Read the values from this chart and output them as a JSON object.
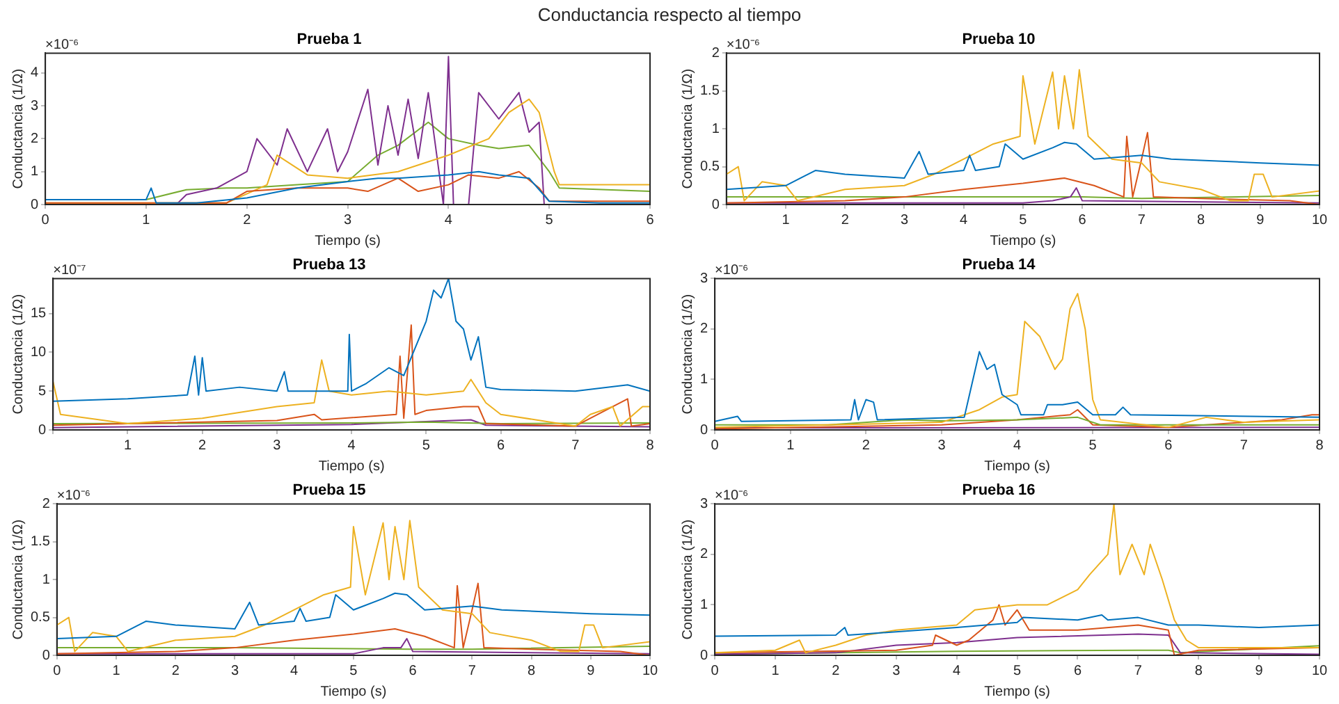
{
  "chart_data": [
    {
      "type": "line",
      "title": "Prueba 1",
      "xlabel": "Tiempo (s)",
      "ylabel": "Conductancia (1/Ω)",
      "annotations": [
        "×10⁻⁶",
        "Conductancia respecto al tiempo"
      ],
      "xlim": [
        0,
        6
      ],
      "xticks": [
        0,
        1,
        2,
        3,
        4,
        5,
        6
      ],
      "ylim": [
        0,
        4.6
      ],
      "yticks": [
        0,
        1,
        2,
        3,
        4
      ],
      "series": [
        {
          "color": "#0072bd",
          "x": [
            0,
            1,
            1.05,
            1.1,
            1.5,
            2,
            2.5,
            3,
            3.3,
            3.5,
            4,
            4.3,
            4.5,
            4.8,
            5,
            5.5,
            6
          ],
          "values": [
            0.15,
            0.15,
            0.5,
            0.05,
            0.05,
            0.2,
            0.5,
            0.7,
            0.8,
            0.8,
            0.9,
            1.0,
            0.9,
            0.8,
            0.1,
            0.05,
            0.05
          ]
        },
        {
          "color": "#d95319",
          "x": [
            0,
            1.8,
            2,
            2.5,
            3,
            3.2,
            3.5,
            3.7,
            4,
            4.2,
            4.5,
            4.7,
            4.9,
            5,
            6
          ],
          "values": [
            0.05,
            0.05,
            0.4,
            0.5,
            0.5,
            0.4,
            0.8,
            0.4,
            0.6,
            0.9,
            0.8,
            1.0,
            0.5,
            0.1,
            0.1
          ]
        },
        {
          "color": "#edb120",
          "x": [
            0,
            1.8,
            2.2,
            2.3,
            2.6,
            3,
            3.5,
            4,
            4.4,
            4.6,
            4.8,
            4.9,
            5.05,
            5.1,
            6
          ],
          "values": [
            0.05,
            0.05,
            0.6,
            1.5,
            0.9,
            0.8,
            1.0,
            1.5,
            2.0,
            2.8,
            3.2,
            2.8,
            1.0,
            0.6,
            0.6
          ]
        },
        {
          "color": "#7e2f8e",
          "x": [
            0,
            1.3,
            1.4,
            1.7,
            2,
            2.1,
            2.3,
            2.4,
            2.6,
            2.8,
            2.9,
            3,
            3.2,
            3.3,
            3.4,
            3.5,
            3.6,
            3.7,
            3.8,
            3.95,
            4,
            4.05,
            4.2,
            4.3,
            4.5,
            4.7,
            4.8,
            4.9,
            4.95,
            5,
            6
          ],
          "values": [
            0,
            0,
            0.3,
            0.5,
            1.0,
            2.0,
            1.2,
            2.3,
            1.0,
            2.3,
            1.0,
            1.6,
            3.5,
            1.2,
            3.0,
            1.5,
            3.2,
            1.4,
            3.4,
            0,
            4.5,
            0,
            0,
            3.4,
            2.6,
            3.4,
            2.2,
            2.5,
            0,
            0,
            0
          ]
        },
        {
          "color": "#77ac30",
          "x": [
            0,
            1,
            1.4,
            1.8,
            2,
            2.5,
            3,
            3.3,
            3.5,
            3.8,
            4,
            4.3,
            4.5,
            4.8,
            5,
            5.1,
            6
          ],
          "values": [
            0.15,
            0.15,
            0.45,
            0.5,
            0.5,
            0.6,
            0.7,
            1.5,
            1.8,
            2.5,
            2.0,
            1.8,
            1.7,
            1.8,
            1.0,
            0.5,
            0.4
          ]
        }
      ]
    },
    {
      "type": "line",
      "title": "Prueba 10",
      "xlabel": "Tiempo (s)",
      "ylabel": "Conductancia (1/Ω)",
      "annotations": [
        "×10⁻⁶"
      ],
      "xlim": [
        0,
        10
      ],
      "xticks": [
        {
          "value": 0,
          "label": null
        },
        1,
        2,
        3,
        4,
        5,
        6,
        7,
        8,
        9,
        10
      ],
      "ylim": [
        0,
        2
      ],
      "yticks": [
        0,
        0.5,
        1,
        1.5,
        2
      ],
      "series": [
        {
          "color": "#0072bd",
          "x": [
            0,
            1,
            1.5,
            2,
            3,
            3.25,
            3.4,
            4,
            4.1,
            4.2,
            4.6,
            4.7,
            5,
            5.5,
            5.7,
            5.9,
            6.2,
            7,
            7.5,
            9,
            10
          ],
          "values": [
            0.2,
            0.25,
            0.45,
            0.4,
            0.35,
            0.7,
            0.4,
            0.45,
            0.65,
            0.45,
            0.5,
            0.8,
            0.6,
            0.75,
            0.82,
            0.8,
            0.6,
            0.65,
            0.6,
            0.55,
            0.52
          ]
        },
        {
          "color": "#edb120",
          "x": [
            0,
            0.2,
            0.3,
            0.6,
            1,
            1.2,
            2,
            3,
            3.5,
            4,
            4.5,
            4.95,
            5,
            5.2,
            5.5,
            5.6,
            5.7,
            5.85,
            5.95,
            6.1,
            6.5,
            7,
            7.3,
            8,
            8.5,
            8.8,
            8.9,
            9.05,
            9.2,
            10
          ],
          "values": [
            0.4,
            0.5,
            0.05,
            0.3,
            0.25,
            0.05,
            0.2,
            0.25,
            0.4,
            0.6,
            0.8,
            0.9,
            1.7,
            0.8,
            1.75,
            1.0,
            1.7,
            1.0,
            1.78,
            0.9,
            0.6,
            0.55,
            0.3,
            0.2,
            0.05,
            0.05,
            0.4,
            0.4,
            0.1,
            0.18
          ]
        },
        {
          "color": "#d95319",
          "x": [
            0,
            2,
            3,
            4,
            5,
            5.7,
            6.2,
            6.7,
            6.75,
            6.85,
            7,
            7.1,
            7.2,
            8,
            9.5,
            10
          ],
          "values": [
            0.02,
            0.05,
            0.1,
            0.2,
            0.28,
            0.35,
            0.25,
            0.1,
            0.9,
            0.1,
            0.6,
            0.95,
            0.1,
            0.08,
            0.05,
            0
          ]
        },
        {
          "color": "#7e2f8e",
          "x": [
            0,
            5,
            5.5,
            5.8,
            5.9,
            6,
            10
          ],
          "values": [
            0.02,
            0.02,
            0.05,
            0.1,
            0.22,
            0.05,
            0.02
          ]
        },
        {
          "color": "#77ac30",
          "x": [
            0,
            3,
            6,
            7,
            10
          ],
          "values": [
            0.1,
            0.1,
            0.1,
            0.08,
            0.12
          ]
        }
      ]
    },
    {
      "type": "line",
      "title": "Prueba 13",
      "xlabel": "Tiempo (s)",
      "ylabel": "Conductancia (1/Ω)",
      "annotations": [
        "×10⁻⁷"
      ],
      "xlim": [
        0,
        8
      ],
      "xticks": [
        {
          "value": 0,
          "label": null
        },
        1,
        2,
        3,
        4,
        5,
        6,
        7,
        8
      ],
      "ylim": [
        0,
        19.5
      ],
      "yticks": [
        0,
        5,
        10,
        15
      ],
      "series": [
        {
          "color": "#0072bd",
          "x": [
            0,
            1,
            1.8,
            1.9,
            1.95,
            2,
            2.05,
            2.5,
            3,
            3.1,
            3.15,
            3.95,
            3.97,
            4,
            4.2,
            4.5,
            4.7,
            5,
            5.1,
            5.2,
            5.3,
            5.4,
            5.5,
            5.6,
            5.7,
            5.8,
            6,
            7,
            7.7,
            8
          ],
          "values": [
            3.7,
            4.0,
            4.5,
            9.5,
            4.5,
            9.3,
            5,
            5.5,
            5,
            7.5,
            5,
            5,
            12.3,
            5,
            6,
            8,
            7,
            14,
            18,
            17,
            19.5,
            14,
            13,
            9,
            12,
            5.5,
            5.2,
            5,
            5.8,
            5.0
          ]
        },
        {
          "color": "#edb120",
          "x": [
            0,
            0.1,
            1,
            2,
            3,
            3.5,
            3.6,
            3.7,
            4,
            4.5,
            5,
            5.5,
            5.6,
            5.7,
            5.8,
            6,
            7,
            7.2,
            7.5,
            7.6,
            7.9,
            8
          ],
          "values": [
            6.2,
            2,
            0.8,
            1.5,
            3,
            3.5,
            9,
            5,
            4.5,
            5,
            4.5,
            5,
            6.5,
            5,
            3.5,
            2,
            0.5,
            2,
            3,
            0.5,
            3,
            3
          ]
        },
        {
          "color": "#d95319",
          "x": [
            0,
            3,
            3.5,
            3.6,
            4.6,
            4.65,
            4.7,
            4.8,
            4.85,
            5,
            5.5,
            5.7,
            5.8,
            7,
            7.7,
            7.75,
            8
          ],
          "values": [
            0.6,
            1.2,
            2,
            1.3,
            2,
            9.5,
            1.5,
            13.5,
            2,
            2.5,
            3,
            3,
            0.8,
            0.5,
            4,
            0.5,
            0.8
          ]
        },
        {
          "color": "#77ac30",
          "x": [
            0,
            4,
            5,
            6,
            8
          ],
          "values": [
            0.8,
            0.9,
            1.0,
            0.8,
            0.9
          ]
        },
        {
          "color": "#7e2f8e",
          "x": [
            0,
            4,
            5.6,
            5.8,
            8
          ],
          "values": [
            0.3,
            0.7,
            1.3,
            0.6,
            0.4
          ]
        }
      ]
    },
    {
      "type": "line",
      "title": "Prueba 14",
      "xlabel": "Tiempo (s)",
      "ylabel": "Conductancia (1/Ω)",
      "annotations": [
        "×10⁻⁶"
      ],
      "xlim": [
        0,
        8
      ],
      "xticks": [
        0,
        1,
        2,
        3,
        4,
        5,
        6,
        7,
        8
      ],
      "ylim": [
        0,
        3
      ],
      "yticks": [
        0,
        1,
        2,
        3
      ],
      "series": [
        {
          "color": "#0072bd",
          "x": [
            0,
            0.3,
            0.35,
            1.8,
            1.85,
            1.9,
            2,
            2.1,
            2.15,
            3.3,
            3.4,
            3.5,
            3.6,
            3.7,
            3.8,
            4,
            4.05,
            4.35,
            4.4,
            4.6,
            4.8,
            5,
            5.3,
            5.4,
            5.5,
            8
          ],
          "values": [
            0.17,
            0.27,
            0.17,
            0.2,
            0.6,
            0.2,
            0.6,
            0.55,
            0.2,
            0.25,
            0.9,
            1.55,
            1.2,
            1.3,
            0.7,
            0.5,
            0.3,
            0.3,
            0.5,
            0.5,
            0.55,
            0.3,
            0.3,
            0.45,
            0.3,
            0.25
          ]
        },
        {
          "color": "#edb120",
          "x": [
            0,
            3,
            3.5,
            3.8,
            4,
            4.1,
            4.3,
            4.5,
            4.6,
            4.7,
            4.8,
            4.9,
            5,
            5.1,
            6,
            6.5,
            7,
            8
          ],
          "values": [
            0.05,
            0.15,
            0.4,
            0.65,
            0.7,
            2.15,
            1.85,
            1.2,
            1.4,
            2.4,
            2.7,
            2.0,
            0.6,
            0.2,
            0.05,
            0.25,
            0.15,
            0.2
          ]
        },
        {
          "color": "#77ac30",
          "x": [
            0,
            1.5,
            2.5,
            3,
            4,
            4.8,
            5.1,
            8
          ],
          "values": [
            0.1,
            0.1,
            0.2,
            0.18,
            0.2,
            0.25,
            0.1,
            0.1
          ]
        },
        {
          "color": "#d95319",
          "x": [
            0,
            3,
            4,
            4.7,
            4.8,
            5,
            6,
            7.5,
            7.9,
            8
          ],
          "values": [
            0.02,
            0.1,
            0.2,
            0.3,
            0.4,
            0.1,
            0.05,
            0.2,
            0.3,
            0.3
          ]
        },
        {
          "color": "#7e2f8e",
          "x": [
            0,
            8
          ],
          "values": [
            0.04,
            0.05
          ]
        }
      ]
    },
    {
      "type": "line",
      "title": "Prueba 15",
      "xlabel": "Tiempo (s)",
      "ylabel": "Conductancia (1/Ω)",
      "annotations": [
        "×10⁻⁶"
      ],
      "xlim": [
        0,
        10
      ],
      "xticks": [
        0,
        1,
        2,
        3,
        4,
        5,
        6,
        7,
        8,
        9,
        10
      ],
      "ylim": [
        0,
        2
      ],
      "yticks": [
        0,
        0.5,
        1,
        1.5,
        2
      ],
      "series": [
        {
          "color": "#0072bd",
          "x": [
            0,
            1,
            1.5,
            2,
            3,
            3.25,
            3.4,
            4,
            4.1,
            4.2,
            4.6,
            4.7,
            5,
            5.5,
            5.7,
            5.9,
            6.2,
            7,
            7.5,
            9,
            10
          ],
          "values": [
            0.22,
            0.25,
            0.45,
            0.4,
            0.35,
            0.7,
            0.4,
            0.45,
            0.62,
            0.45,
            0.5,
            0.8,
            0.6,
            0.75,
            0.82,
            0.8,
            0.6,
            0.65,
            0.6,
            0.55,
            0.53
          ]
        },
        {
          "color": "#edb120",
          "x": [
            0,
            0.2,
            0.3,
            0.6,
            1,
            1.2,
            2,
            3,
            3.5,
            4,
            4.5,
            4.95,
            5,
            5.2,
            5.5,
            5.6,
            5.7,
            5.85,
            5.95,
            6.1,
            6.5,
            7,
            7.3,
            8,
            8.5,
            8.8,
            8.9,
            9.05,
            9.2,
            10
          ],
          "values": [
            0.4,
            0.5,
            0.05,
            0.3,
            0.25,
            0.05,
            0.2,
            0.25,
            0.4,
            0.6,
            0.8,
            0.9,
            1.7,
            0.8,
            1.75,
            1.0,
            1.7,
            1.0,
            1.78,
            0.9,
            0.6,
            0.55,
            0.3,
            0.2,
            0.05,
            0.05,
            0.4,
            0.4,
            0.1,
            0.18
          ]
        },
        {
          "color": "#d95319",
          "x": [
            0,
            2,
            3,
            4,
            5,
            5.7,
            6.2,
            6.7,
            6.75,
            6.85,
            7,
            7.1,
            7.2,
            8,
            9.5,
            10
          ],
          "values": [
            0.02,
            0.05,
            0.1,
            0.2,
            0.28,
            0.35,
            0.25,
            0.1,
            0.92,
            0.1,
            0.6,
            0.95,
            0.1,
            0.08,
            0.05,
            0
          ]
        },
        {
          "color": "#7e2f8e",
          "x": [
            0,
            5,
            5.5,
            5.8,
            5.9,
            6,
            10
          ],
          "values": [
            0.02,
            0.02,
            0.1,
            0.1,
            0.22,
            0.05,
            0.02
          ]
        },
        {
          "color": "#77ac30",
          "x": [
            0,
            3,
            6,
            7,
            10
          ],
          "values": [
            0.1,
            0.1,
            0.08,
            0.08,
            0.12
          ]
        }
      ]
    },
    {
      "type": "line",
      "title": "Prueba 16",
      "xlabel": "Tiempo (s)",
      "ylabel": "Conductancia (1/Ω)",
      "annotations": [
        "×10⁻⁶"
      ],
      "xlim": [
        0,
        10
      ],
      "xticks": [
        0,
        1,
        2,
        3,
        4,
        5,
        6,
        7,
        8,
        9,
        10
      ],
      "ylim": [
        0,
        3
      ],
      "yticks": [
        0,
        1,
        2,
        3
      ],
      "series": [
        {
          "color": "#0072bd",
          "x": [
            0,
            2,
            2.15,
            2.2,
            4,
            5,
            5.1,
            6,
            6.4,
            6.5,
            7,
            7.5,
            8,
            9,
            10
          ],
          "values": [
            0.38,
            0.4,
            0.55,
            0.4,
            0.55,
            0.65,
            0.75,
            0.7,
            0.8,
            0.7,
            0.75,
            0.6,
            0.6,
            0.55,
            0.6
          ]
        },
        {
          "color": "#edb120",
          "x": [
            0,
            1,
            1.4,
            1.5,
            2,
            2.5,
            3,
            3.5,
            4,
            4.3,
            5,
            5.5,
            6,
            6.2,
            6.5,
            6.6,
            6.7,
            6.9,
            7.1,
            7.2,
            7.4,
            7.6,
            7.8,
            8,
            10
          ],
          "values": [
            0.05,
            0.1,
            0.3,
            0.05,
            0.2,
            0.4,
            0.5,
            0.55,
            0.6,
            0.9,
            1.0,
            1.0,
            1.3,
            1.6,
            2.0,
            3.0,
            1.6,
            2.2,
            1.6,
            2.2,
            1.5,
            0.7,
            0.3,
            0.15,
            0.15
          ]
        },
        {
          "color": "#d95319",
          "x": [
            0,
            3,
            3.6,
            3.65,
            4,
            4.2,
            4.6,
            4.7,
            4.8,
            5,
            5.2,
            6,
            7,
            7.5,
            7.6,
            8,
            10
          ],
          "values": [
            0.05,
            0.1,
            0.2,
            0.4,
            0.2,
            0.3,
            0.7,
            1.0,
            0.6,
            0.9,
            0.5,
            0.5,
            0.6,
            0.5,
            0,
            0.1,
            0.15
          ]
        },
        {
          "color": "#7e2f8e",
          "x": [
            0,
            2,
            3,
            4,
            5,
            7,
            7.5,
            7.7,
            10
          ],
          "values": [
            0.02,
            0.05,
            0.2,
            0.25,
            0.35,
            0.42,
            0.4,
            0.05,
            0.02
          ]
        },
        {
          "color": "#77ac30",
          "x": [
            0,
            4,
            7,
            7.5,
            7.7,
            10
          ],
          "values": [
            0.02,
            0.08,
            0.1,
            0.1,
            0.05,
            0.19
          ]
        }
      ]
    }
  ]
}
